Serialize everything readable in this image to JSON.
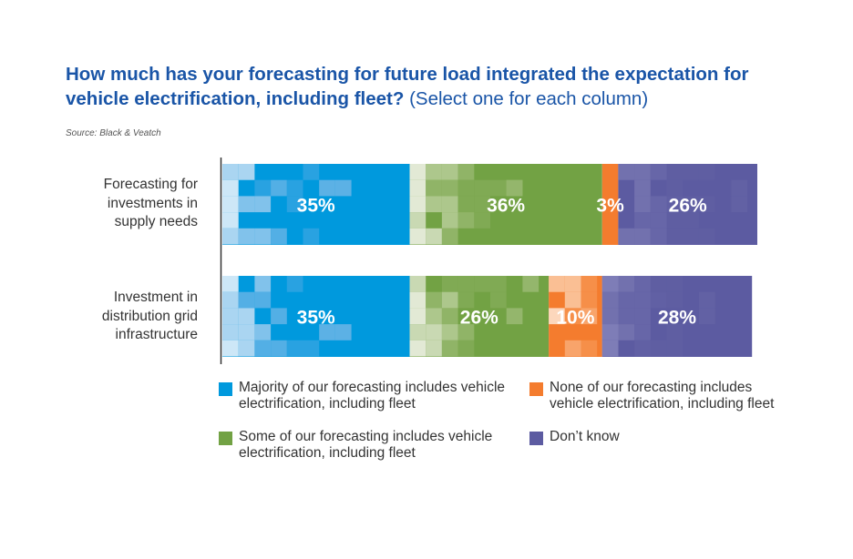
{
  "title": {
    "bold": "How much has your forecasting for future load integrated the expectation for vehicle electrification, including fleet?",
    "normal": "(Select one for each column)"
  },
  "source": "Source: Black & Veatch",
  "chart_data": {
    "type": "bar",
    "orientation": "horizontal",
    "stacked": true,
    "categories": [
      "Forecasting for investments in supply needs",
      "Investment in distribution grid infrastructure"
    ],
    "series": [
      {
        "name": "Majority of our forecasting includes vehicle electrification, including fleet",
        "color": "#0099dd",
        "values": [
          35,
          35
        ],
        "labels": [
          "35%",
          "35%"
        ]
      },
      {
        "name": "Some of our forecasting includes vehicle electrification, including fleet",
        "color": "#72a244",
        "values": [
          36,
          26
        ],
        "labels": [
          "36%",
          "26%"
        ]
      },
      {
        "name": "None of our forecasting includes vehicle electrification, including fleet",
        "color": "#f47c2e",
        "values": [
          3,
          10
        ],
        "labels": [
          "3%",
          "10%"
        ]
      },
      {
        "name": "Don’t know",
        "color": "#5c5ba1",
        "values": [
          26,
          28
        ],
        "labels": [
          "26%",
          "28%"
        ]
      }
    ],
    "value_unit": "%",
    "legend_position": "bottom"
  },
  "categories_display": {
    "row1": [
      "Forecasting for",
      "investments in",
      "supply needs"
    ],
    "row2": [
      "Investment in",
      "distribution grid",
      "infrastructure"
    ]
  },
  "legend": {
    "majority": [
      "Majority of our forecasting includes vehicle",
      "electrification, including fleet"
    ],
    "some": [
      "Some of our forecasting includes vehicle",
      "electrification, including fleet"
    ],
    "none": [
      "None of our forecasting includes",
      "vehicle electrification, including fleet"
    ],
    "dontknow": [
      "Don’t know"
    ]
  }
}
